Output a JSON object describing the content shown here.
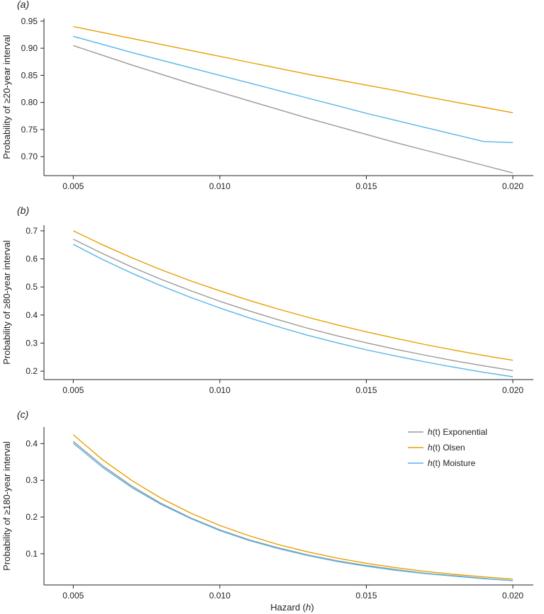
{
  "colors": {
    "exponential": "#999999",
    "olsen": "#E69F00",
    "moisture": "#56B4E9",
    "axis": "#222222"
  },
  "xlabel_prefix": "Hazard (",
  "xlabel_var": "h",
  "xlabel_suffix": ")",
  "legend": {
    "placement": "top-right of panel (c)",
    "prefix_var": "h",
    "prefix_rest": "(t)",
    "items": [
      {
        "key": "exponential",
        "label": "Exponential"
      },
      {
        "key": "olsen",
        "label": "Olsen"
      },
      {
        "key": "moisture",
        "label": "Moisture"
      }
    ]
  },
  "chart_data": [
    {
      "type": "line",
      "panel": "(a)",
      "panel_letter": "a",
      "ylabel": "Probability of ≥20-year interval",
      "xlim": [
        0.004,
        0.0207
      ],
      "ylim": [
        0.665,
        0.955
      ],
      "xticks": [
        0.005,
        0.01,
        0.015,
        0.02
      ],
      "xtick_labels": [
        "0.005",
        "0.010",
        "0.015",
        "0.020"
      ],
      "yticks": [
        0.7,
        0.75,
        0.8,
        0.85,
        0.9,
        0.95
      ],
      "ytick_labels": [
        "0.70",
        "0.75",
        "0.80",
        "0.85",
        "0.90",
        "0.95"
      ],
      "x": [
        0.005,
        0.006,
        0.007,
        0.008,
        0.009,
        0.01,
        0.011,
        0.012,
        0.013,
        0.014,
        0.015,
        0.016,
        0.017,
        0.018,
        0.019,
        0.02
      ],
      "series": [
        {
          "key": "exponential",
          "values": [
            0.905,
            0.887,
            0.869,
            0.852,
            0.835,
            0.819,
            0.803,
            0.787,
            0.771,
            0.756,
            0.741,
            0.726,
            0.712,
            0.698,
            0.684,
            0.67
          ]
        },
        {
          "key": "olsen",
          "values": [
            0.94,
            0.929,
            0.918,
            0.907,
            0.896,
            0.885,
            0.874,
            0.863,
            0.852,
            0.842,
            0.832,
            0.822,
            0.811,
            0.801,
            0.791,
            0.781
          ]
        },
        {
          "key": "moisture",
          "values": [
            0.922,
            0.907,
            0.892,
            0.878,
            0.864,
            0.85,
            0.836,
            0.822,
            0.808,
            0.794,
            0.78,
            0.767,
            0.754,
            0.741,
            0.728,
            0.726
          ]
        }
      ]
    },
    {
      "type": "line",
      "panel": "(b)",
      "panel_letter": "b",
      "ylabel": "Probability of ≥80-year interval",
      "xlim": [
        0.004,
        0.0207
      ],
      "ylim": [
        0.17,
        0.72
      ],
      "xticks": [
        0.005,
        0.01,
        0.015,
        0.02
      ],
      "xtick_labels": [
        "0.005",
        "0.010",
        "0.015",
        "0.020"
      ],
      "yticks": [
        0.2,
        0.3,
        0.4,
        0.5,
        0.6,
        0.7
      ],
      "ytick_labels": [
        "0.2",
        "0.3",
        "0.4",
        "0.5",
        "0.6",
        "0.7"
      ],
      "x": [
        0.005,
        0.006,
        0.007,
        0.008,
        0.009,
        0.01,
        0.011,
        0.012,
        0.013,
        0.014,
        0.015,
        0.016,
        0.017,
        0.018,
        0.019,
        0.02
      ],
      "series": [
        {
          "key": "exponential",
          "values": [
            0.67,
            0.619,
            0.571,
            0.527,
            0.487,
            0.449,
            0.415,
            0.383,
            0.353,
            0.326,
            0.301,
            0.278,
            0.257,
            0.237,
            0.219,
            0.202
          ]
        },
        {
          "key": "olsen",
          "values": [
            0.7,
            0.65,
            0.604,
            0.561,
            0.522,
            0.486,
            0.452,
            0.421,
            0.392,
            0.365,
            0.34,
            0.317,
            0.295,
            0.275,
            0.256,
            0.239
          ]
        },
        {
          "key": "moisture",
          "values": [
            0.652,
            0.598,
            0.549,
            0.504,
            0.463,
            0.425,
            0.39,
            0.358,
            0.328,
            0.301,
            0.276,
            0.254,
            0.233,
            0.214,
            0.196,
            0.18
          ]
        }
      ]
    },
    {
      "type": "line",
      "panel": "(c)",
      "panel_letter": "c",
      "ylabel": "Probability of ≥180-year interval",
      "xlim": [
        0.004,
        0.0207
      ],
      "ylim": [
        0.015,
        0.445
      ],
      "xticks": [
        0.005,
        0.01,
        0.015,
        0.02
      ],
      "xtick_labels": [
        "0.005",
        "0.010",
        "0.015",
        "0.020"
      ],
      "yticks": [
        0.1,
        0.2,
        0.3,
        0.4
      ],
      "ytick_labels": [
        "0.1",
        "0.2",
        "0.3",
        "0.4"
      ],
      "x": [
        0.005,
        0.006,
        0.007,
        0.008,
        0.009,
        0.01,
        0.011,
        0.012,
        0.013,
        0.014,
        0.015,
        0.016,
        0.017,
        0.018,
        0.019,
        0.02
      ],
      "series": [
        {
          "key": "exponential",
          "values": [
            0.406,
            0.34,
            0.284,
            0.237,
            0.198,
            0.165,
            0.138,
            0.116,
            0.097,
            0.081,
            0.068,
            0.057,
            0.047,
            0.04,
            0.033,
            0.027
          ]
        },
        {
          "key": "olsen",
          "values": [
            0.424,
            0.356,
            0.299,
            0.251,
            0.211,
            0.177,
            0.149,
            0.125,
            0.105,
            0.088,
            0.074,
            0.062,
            0.052,
            0.044,
            0.037,
            0.031
          ]
        },
        {
          "key": "moisture",
          "values": [
            0.401,
            0.335,
            0.28,
            0.234,
            0.196,
            0.163,
            0.136,
            0.114,
            0.095,
            0.079,
            0.066,
            0.055,
            0.046,
            0.039,
            0.032,
            0.027
          ]
        }
      ]
    }
  ]
}
